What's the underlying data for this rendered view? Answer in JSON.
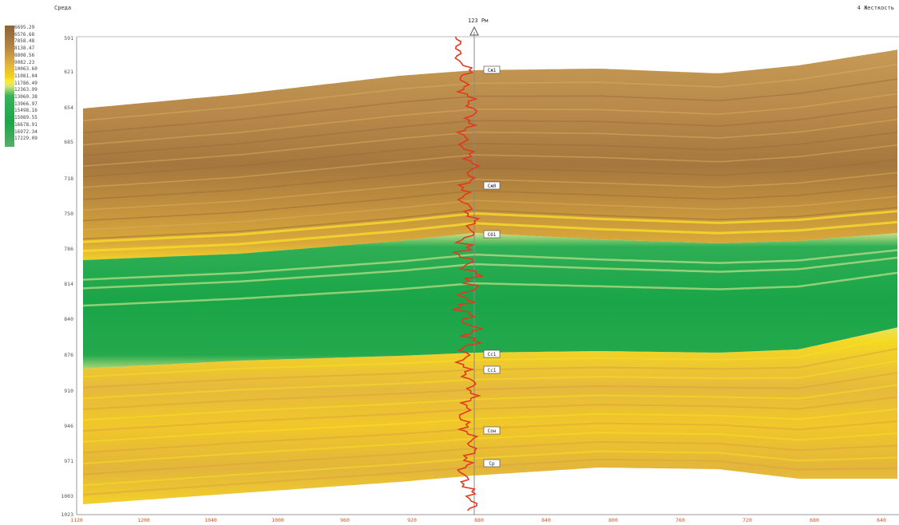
{
  "header": {
    "title_left": "Среда",
    "title_right": "4 Жесткость",
    "well_name": "123 Рм"
  },
  "legend": {
    "labels": [
      "6695.29",
      "6576.68",
      "7858.48",
      "8138.47",
      "8808.56",
      "9082.23",
      "10063.60",
      "11081.04",
      "11786.49",
      "12363.99",
      "13060.38",
      "13966.97",
      "15498.16",
      "15089.55",
      "16678.91",
      "16972.34",
      "17229.09"
    ],
    "colors": [
      "#8c6436",
      "#b68445",
      "#e3b23e",
      "#f2d21b",
      "#f6ec3a",
      "#d5e67a",
      "#37b35a",
      "#1ea649",
      "#58ad6a"
    ]
  },
  "chart_data": {
    "type": "heatmap",
    "y_ticks": [
      "591",
      "621",
      "654",
      "685",
      "718",
      "750",
      "786",
      "814",
      "840",
      "876",
      "910",
      "946",
      "971",
      "1003",
      "1023"
    ],
    "x_ticks": [
      "1120",
      "1200",
      "1040",
      "1000",
      "960",
      "920",
      "880",
      "840",
      "800",
      "760",
      "720",
      "680",
      "640"
    ],
    "horizons": [
      "Сж1",
      "Сж0",
      "Сб1",
      "Сс1",
      "Сс1",
      "Сон",
      "Ср"
    ],
    "colors": {
      "brown": "#b88a45",
      "dark_brown": "#a0733a",
      "yellow": "#f3cd1c",
      "bright_yellow": "#f8e12a",
      "green": "#21a84b",
      "light_green": "#cfe28a",
      "log_curve": "#e03a1e"
    }
  }
}
